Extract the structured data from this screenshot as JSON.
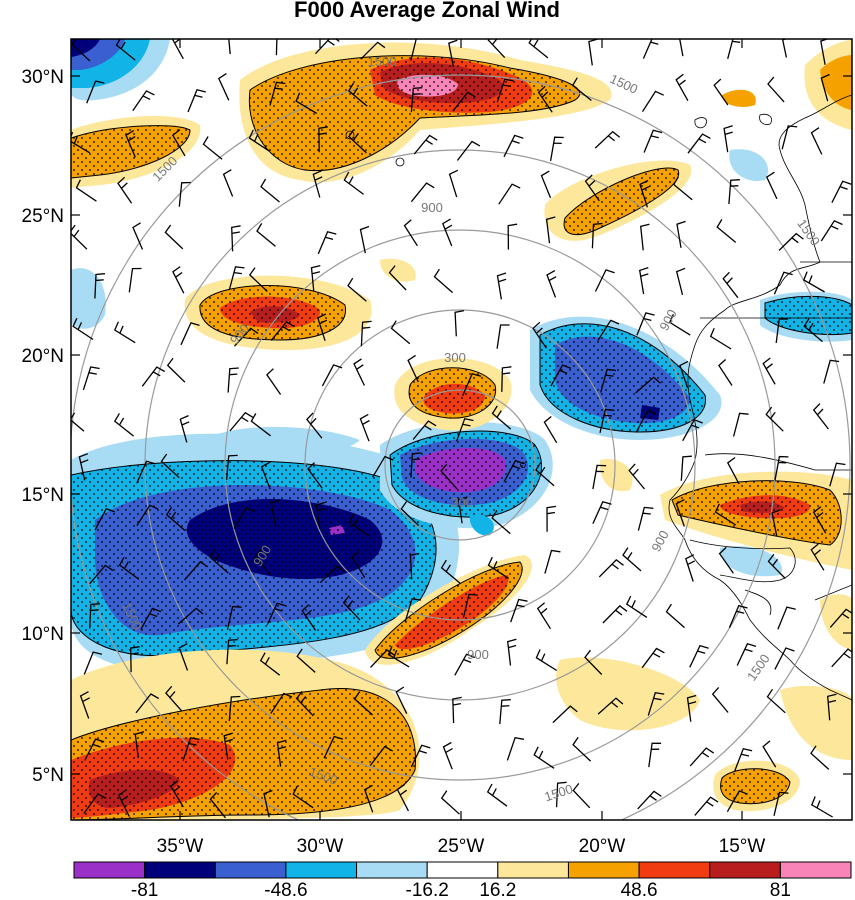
{
  "title": "F000 Average Zonal Wind",
  "map": {
    "lat_labels": [
      "30°N",
      "25°N",
      "20°N",
      "15°N",
      "10°N",
      "5°N"
    ],
    "lon_labels": [
      "35°W",
      "30°W",
      "25°W",
      "20°W",
      "15°W"
    ],
    "range_rings": [
      {
        "label": "300"
      },
      {
        "label": "900"
      },
      {
        "label": "1500"
      }
    ],
    "shading_colors": {
      "neg_strong": "#9b30c8",
      "neg_navy": "#00007a",
      "neg_blue": "#3a5fd0",
      "neg_cyan": "#12b4e8",
      "neg_light": "#a8dcf4",
      "neutral": "#ffffff",
      "pos_light": "#fde79a",
      "pos_orange": "#f5a100",
      "pos_red": "#f03c10",
      "pos_darkred": "#b81e1e",
      "pos_pink": "#f984b8"
    }
  },
  "colorbar": {
    "colors": [
      "#9b30c8",
      "#00007a",
      "#3a5fd0",
      "#12b4e8",
      "#a8dcf4",
      "#ffffff",
      "#fde79a",
      "#f5a100",
      "#f03c10",
      "#b81e1e",
      "#f984b8"
    ],
    "labels": [
      "-81",
      "-48.6",
      "-16.2",
      "16.2",
      "48.6",
      "81"
    ]
  }
}
